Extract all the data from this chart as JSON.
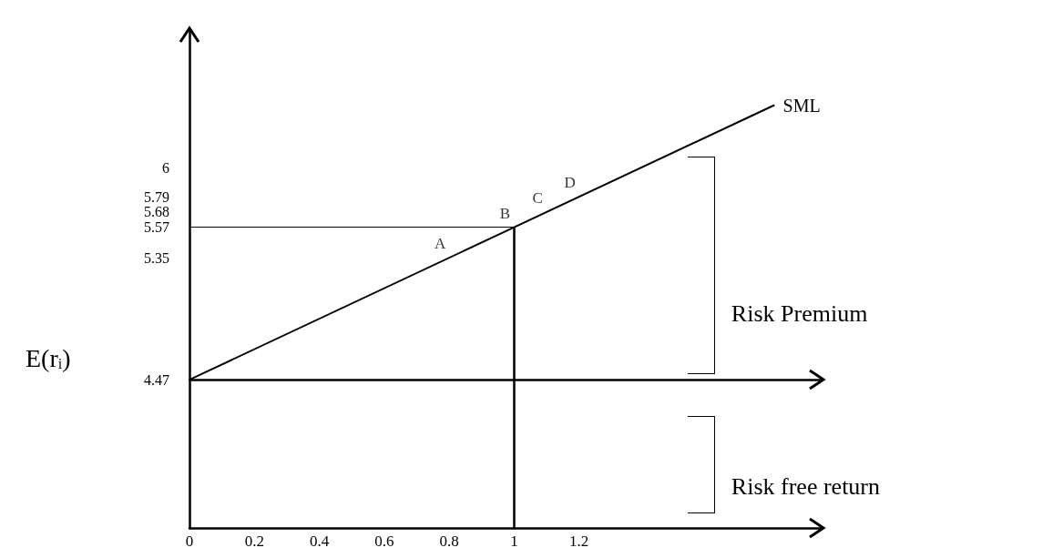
{
  "chart_data": {
    "type": "line",
    "ylabel": "E(r$_{i}$)",
    "series": [
      {
        "name": "SML",
        "color": "#000000",
        "x": [
          0,
          1.8
        ],
        "values": [
          4.47,
          6.45
        ]
      }
    ],
    "xlim": [
      0,
      1.95
    ],
    "xticks": [
      0,
      0.2,
      0.4,
      0.6,
      0.8,
      1,
      1.2
    ],
    "ylim": [
      3.4,
      7
    ],
    "yticks": [
      4.47,
      5.35,
      5.57,
      5.68,
      5.79,
      6
    ],
    "annotations": [
      {
        "text": "A",
        "x": 0.8,
        "y": 5.35
      },
      {
        "text": "B",
        "x": 1,
        "y": 5.57
      },
      {
        "text": "C",
        "x": 1.1,
        "y": 5.68
      },
      {
        "text": "D",
        "x": 1.2,
        "y": 5.79
      },
      "Risk Premium",
      "Risk free return"
    ],
    "ref_lines": [
      {
        "axis": "y",
        "value": 4.47,
        "color": "#000000"
      },
      {
        "axis": "y",
        "value": 5.57,
        "color": "#000000"
      },
      {
        "axis": "x",
        "value": 1,
        "color": "#000000"
      }
    ],
    "grid": false,
    "marker": "none",
    "line_style": "solid"
  }
}
